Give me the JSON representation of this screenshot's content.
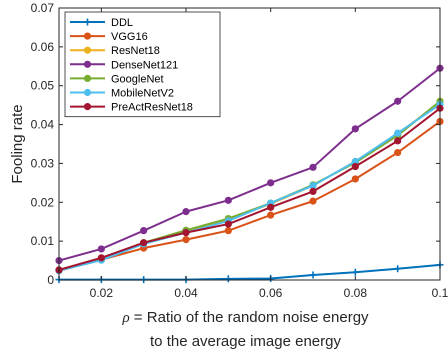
{
  "chart_data": {
    "type": "line",
    "xlabel": "",
    "xlabel_symbol": "ρ",
    "xlabel_rest": " = Ratio of the random noise energy",
    "xlabel_line2": "to the average image energy",
    "ylabel": "Fooling rate",
    "xlim": [
      0.01,
      0.1
    ],
    "ylim": [
      0,
      0.07
    ],
    "x_ticks": [
      0.02,
      0.04,
      0.06,
      0.08,
      0.1
    ],
    "x_tick_labels": [
      "0.02",
      "0.04",
      "0.06",
      "0.08",
      "0.1"
    ],
    "y_ticks": [
      0,
      0.01,
      0.02,
      0.03,
      0.04,
      0.05,
      0.06,
      0.07
    ],
    "y_tick_labels": [
      "0",
      "0.01",
      "0.02",
      "0.03",
      "0.04",
      "0.05",
      "0.06",
      "0.07"
    ],
    "grid": false,
    "legend_position": "top-left",
    "x": [
      0.01,
      0.02,
      0.03,
      0.04,
      0.05,
      0.06,
      0.07,
      0.08,
      0.09,
      0.1
    ],
    "series": [
      {
        "name": "DDL",
        "color": "#0072BD",
        "marker": "plus",
        "values": [
          0.0001,
          0.0001,
          0.0001,
          0.0001,
          0.0003,
          0.0004,
          0.0013,
          0.002,
          0.0029,
          0.0039
        ]
      },
      {
        "name": "VGG16",
        "color": "#D95319",
        "marker": "circle",
        "values": [
          0.0024,
          0.0052,
          0.0082,
          0.0104,
          0.0127,
          0.0167,
          0.0203,
          0.026,
          0.0328,
          0.0408
        ]
      },
      {
        "name": "ResNet18",
        "color": "#EDB120",
        "marker": "circle",
        "values": [
          0.0025,
          0.0056,
          0.0095,
          0.0127,
          0.0155,
          0.0196,
          0.0243,
          0.0305,
          0.0375,
          0.0458
        ]
      },
      {
        "name": "DenseNet121",
        "color": "#7E2F8E",
        "marker": "circle",
        "values": [
          0.005,
          0.008,
          0.0127,
          0.0176,
          0.0205,
          0.025,
          0.029,
          0.0389,
          0.046,
          0.0545
        ]
      },
      {
        "name": "GoogleNet",
        "color": "#77AC30",
        "marker": "circle",
        "values": [
          0.0025,
          0.0053,
          0.0096,
          0.0128,
          0.0158,
          0.0198,
          0.0245,
          0.0302,
          0.0372,
          0.046
        ]
      },
      {
        "name": "MobileNetV2",
        "color": "#4DBEEE",
        "marker": "circle",
        "values": [
          0.0024,
          0.0051,
          0.0093,
          0.0122,
          0.0152,
          0.0198,
          0.0243,
          0.0305,
          0.0378,
          0.0452
        ]
      },
      {
        "name": "PreActResNet18",
        "color": "#A2142F",
        "marker": "circle",
        "values": [
          0.0026,
          0.0057,
          0.0096,
          0.0122,
          0.0144,
          0.0187,
          0.0228,
          0.0292,
          0.0358,
          0.0442
        ]
      }
    ]
  }
}
